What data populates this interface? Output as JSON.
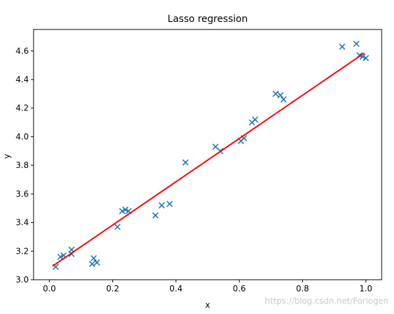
{
  "chart_data": {
    "type": "scatter",
    "title": "Lasso regression",
    "xlabel": "x",
    "ylabel": "y",
    "xlim": [
      -0.05,
      1.05
    ],
    "ylim": [
      3.0,
      4.75
    ],
    "xticks": [
      0.0,
      0.2,
      0.4,
      0.6,
      0.8,
      1.0
    ],
    "xtick_labels": [
      "0.0",
      "0.2",
      "0.4",
      "0.6",
      "0.8",
      "1.0"
    ],
    "yticks": [
      3.0,
      3.2,
      3.4,
      3.6,
      3.8,
      4.0,
      4.2,
      4.4,
      4.6
    ],
    "ytick_labels": [
      "3.0",
      "3.2",
      "3.4",
      "3.6",
      "3.8",
      "4.0",
      "4.2",
      "4.4",
      "4.6"
    ],
    "grid": false,
    "points": {
      "marker": "x",
      "color": "#1f77b4",
      "x": [
        0.02,
        0.035,
        0.045,
        0.07,
        0.07,
        0.135,
        0.14,
        0.15,
        0.215,
        0.23,
        0.24,
        0.25,
        0.335,
        0.355,
        0.38,
        0.43,
        0.525,
        0.54,
        0.605,
        0.615,
        0.64,
        0.65,
        0.715,
        0.73,
        0.74,
        0.925,
        0.97,
        0.98,
        0.99,
        1.0
      ],
      "y": [
        3.09,
        3.16,
        3.17,
        3.21,
        3.18,
        3.11,
        3.15,
        3.12,
        3.37,
        3.48,
        3.49,
        3.48,
        3.45,
        3.52,
        3.53,
        3.82,
        3.93,
        3.9,
        3.97,
        3.99,
        4.1,
        4.12,
        4.3,
        4.29,
        4.26,
        4.63,
        4.65,
        4.57,
        4.56,
        4.55
      ]
    },
    "fit_line": {
      "color": "#ff0000",
      "x": [
        0.01,
        0.995
      ],
      "y": [
        3.095,
        4.585
      ]
    }
  },
  "watermark": "https://blog.csdn.net/Forlogen"
}
